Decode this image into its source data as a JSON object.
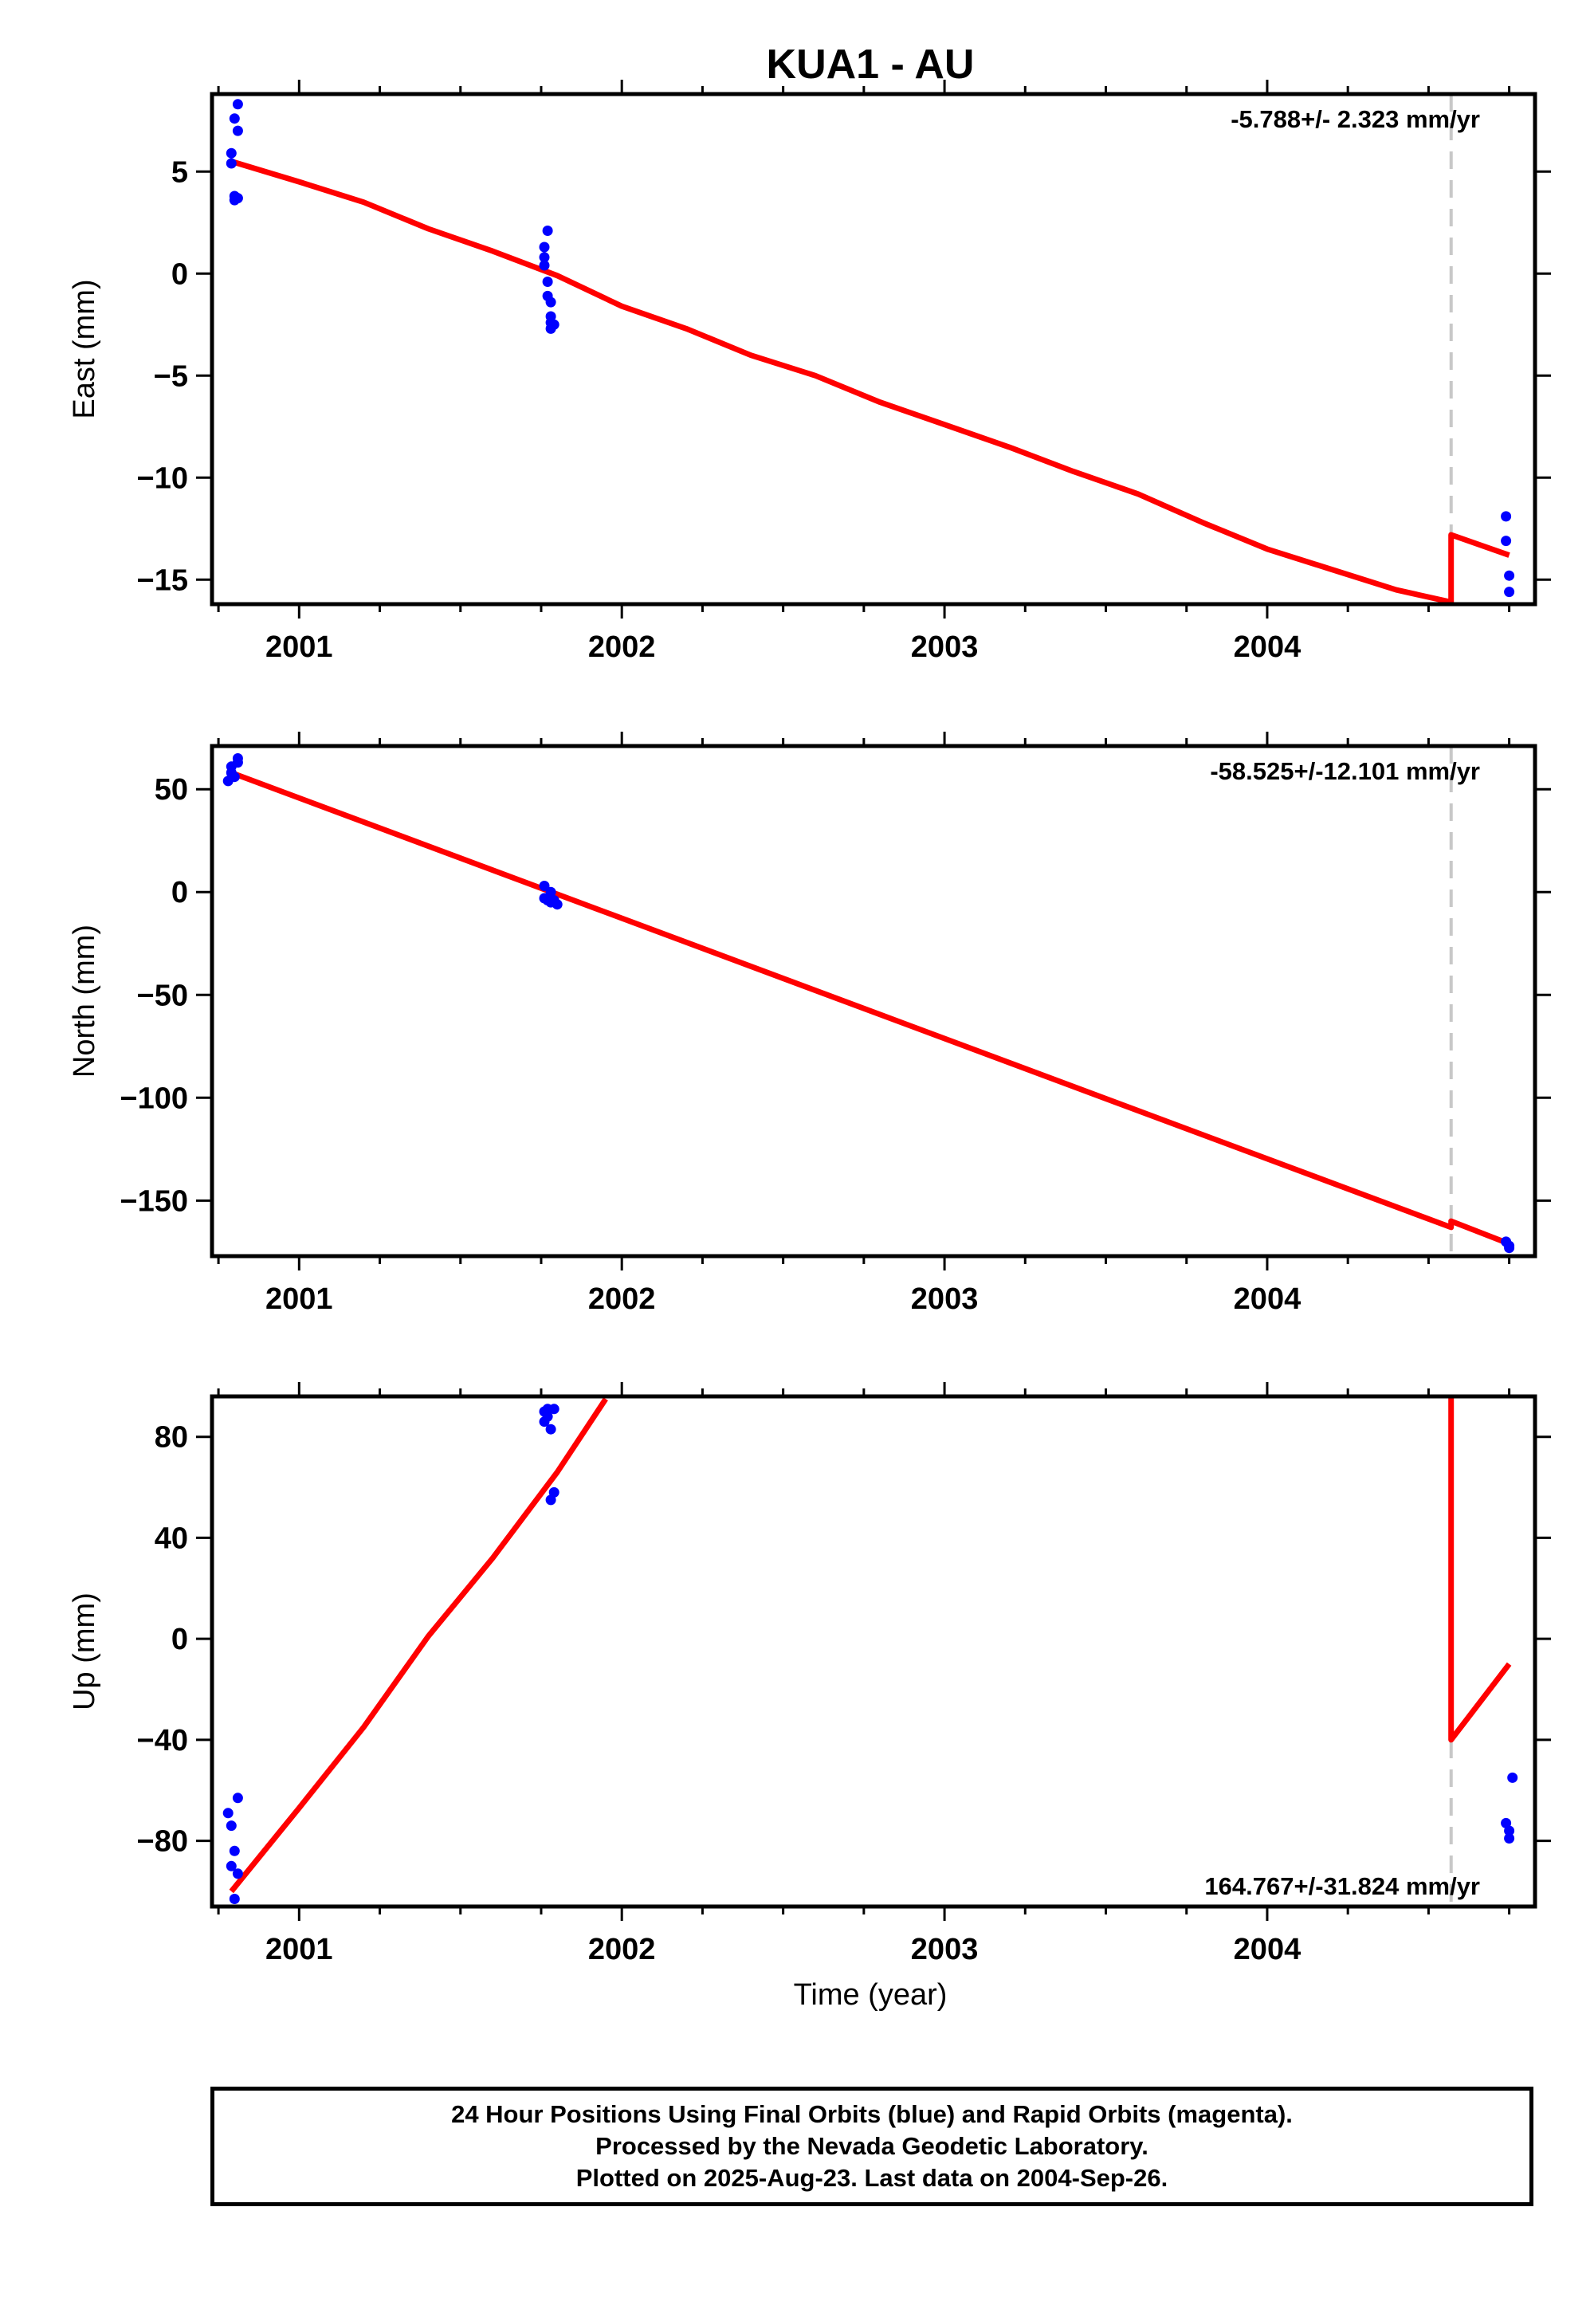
{
  "chart_data": {
    "type": "scatter",
    "title": "KUA1 - AU",
    "xlabel": "Time (year)",
    "x_ticks": [
      2001,
      2002,
      2003,
      2004
    ],
    "xlim": [
      2000.73,
      2004.83
    ],
    "offset_epoch": 2004.57,
    "panels": [
      {
        "name": "east",
        "ylabel": "East (mm)",
        "ylim": [
          -16.2,
          8.8
        ],
        "yticks": [
          5,
          0,
          -5,
          -10,
          -15
        ],
        "rate_label": "-5.788+/- 2.323 mm/yr",
        "rate_position": "top-right",
        "points": [
          [
            2000.79,
            5.9
          ],
          [
            2000.79,
            5.4
          ],
          [
            2000.8,
            3.8
          ],
          [
            2000.8,
            3.6
          ],
          [
            2000.8,
            7.6
          ],
          [
            2000.81,
            7.0
          ],
          [
            2000.81,
            8.3
          ],
          [
            2000.81,
            3.7
          ],
          [
            2001.76,
            1.3
          ],
          [
            2001.76,
            0.8
          ],
          [
            2001.76,
            0.4
          ],
          [
            2001.77,
            2.1
          ],
          [
            2001.77,
            -0.4
          ],
          [
            2001.77,
            -1.1
          ],
          [
            2001.78,
            -1.4
          ],
          [
            2001.78,
            -2.1
          ],
          [
            2001.78,
            -2.4
          ],
          [
            2001.78,
            -2.7
          ],
          [
            2001.79,
            -2.5
          ],
          [
            2004.74,
            -11.9
          ],
          [
            2004.74,
            -13.1
          ],
          [
            2004.75,
            -14.8
          ],
          [
            2004.75,
            -15.6
          ]
        ],
        "model": [
          [
            2000.79,
            5.5
          ],
          [
            2001.0,
            4.5
          ],
          [
            2001.2,
            3.5
          ],
          [
            2001.4,
            2.2
          ],
          [
            2001.6,
            1.1
          ],
          [
            2001.8,
            -0.1
          ],
          [
            2002.0,
            -1.6
          ],
          [
            2002.2,
            -2.7
          ],
          [
            2002.4,
            -4.0
          ],
          [
            2002.6,
            -5.0
          ],
          [
            2002.8,
            -6.3
          ],
          [
            2003.0,
            -7.4
          ],
          [
            2003.2,
            -8.5
          ],
          [
            2003.4,
            -9.7
          ],
          [
            2003.6,
            -10.8
          ],
          [
            2003.8,
            -12.2
          ],
          [
            2004.0,
            -13.5
          ],
          [
            2004.2,
            -14.5
          ],
          [
            2004.4,
            -15.5
          ],
          [
            2004.57,
            -16.1
          ],
          [
            2004.57,
            -12.8
          ],
          [
            2004.75,
            -13.8
          ]
        ]
      },
      {
        "name": "north",
        "ylabel": "North (mm)",
        "ylim": [
          -177,
          71
        ],
        "yticks": [
          50,
          0,
          -50,
          -100,
          -150
        ],
        "rate_label": "-58.525+/-12.101 mm/yr",
        "rate_position": "top-right",
        "points": [
          [
            2000.78,
            54
          ],
          [
            2000.79,
            58
          ],
          [
            2000.79,
            61
          ],
          [
            2000.8,
            56
          ],
          [
            2000.81,
            65
          ],
          [
            2000.81,
            63
          ],
          [
            2001.76,
            3
          ],
          [
            2001.76,
            -3
          ],
          [
            2001.77,
            -4
          ],
          [
            2001.78,
            0
          ],
          [
            2001.78,
            -5
          ],
          [
            2001.79,
            -4
          ],
          [
            2001.8,
            -6
          ],
          [
            2004.74,
            -170
          ],
          [
            2004.75,
            -173
          ],
          [
            2004.75,
            -172
          ]
        ],
        "model": [
          [
            2000.79,
            58
          ],
          [
            2004.57,
            -163
          ],
          [
            2004.57,
            -160
          ],
          [
            2004.75,
            -171
          ]
        ]
      },
      {
        "name": "up",
        "ylabel": "Up (mm)",
        "ylim": [
          -106,
          96
        ],
        "yticks": [
          80,
          40,
          0,
          -40,
          -80
        ],
        "rate_label": "164.767+/-31.824 mm/yr",
        "rate_position": "bottom-right",
        "points": [
          [
            2000.78,
            -69
          ],
          [
            2000.79,
            -74
          ],
          [
            2000.79,
            -90
          ],
          [
            2000.8,
            -103
          ],
          [
            2000.8,
            -84
          ],
          [
            2000.81,
            -63
          ],
          [
            2000.81,
            -93
          ],
          [
            2001.76,
            90
          ],
          [
            2001.76,
            86
          ],
          [
            2001.77,
            88
          ],
          [
            2001.77,
            91
          ],
          [
            2001.78,
            83
          ],
          [
            2001.78,
            55
          ],
          [
            2001.79,
            58
          ],
          [
            2001.79,
            91
          ],
          [
            2004.74,
            -73
          ],
          [
            2004.75,
            -79
          ],
          [
            2004.75,
            -76
          ],
          [
            2004.76,
            -55
          ]
        ],
        "model": [
          [
            2000.79,
            -100
          ],
          [
            2001.0,
            -67
          ],
          [
            2001.2,
            -35
          ],
          [
            2001.4,
            1
          ],
          [
            2001.6,
            32
          ],
          [
            2001.8,
            66
          ],
          [
            2001.95,
            95
          ]
        ],
        "model_after": [
          [
            2004.57,
            96
          ],
          [
            2004.57,
            -40
          ],
          [
            2004.75,
            -10
          ]
        ]
      }
    ],
    "footer_lines": [
      "24 Hour Positions Using Final Orbits (blue) and Rapid Orbits (magenta).",
      "Processed by the Nevada Geodetic Laboratory.",
      "Plotted on 2025-Aug-23. Last data on 2004-Sep-26."
    ],
    "colors": {
      "points": "#0000ff",
      "model": "#ff0000",
      "offset_line": "#c8c8c8",
      "frame": "#000000"
    }
  }
}
